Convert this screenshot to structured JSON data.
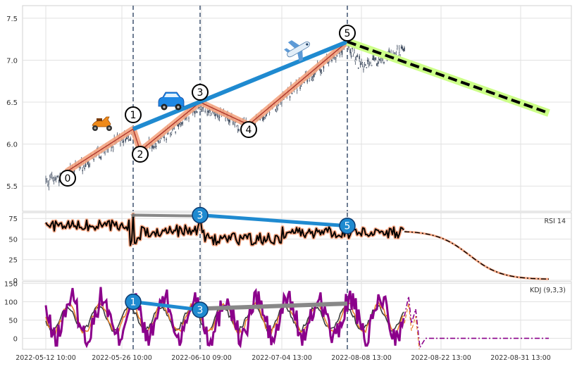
{
  "chart_data": [
    {
      "type": "candlestick",
      "title": "",
      "ylim": [
        5.2,
        7.65
      ],
      "y_ticks": [
        "5.5",
        "6.0",
        "6.5",
        "7.0",
        "7.5"
      ],
      "x_tick_labels": [
        "2022-05-12 10:00",
        "2022-05-26 10:00",
        "2022-06-10 09:00",
        "2022-07-04 13:00",
        "2022-08-08 13:00",
        "2022-08-22 13:00",
        "2022-08-31 13:00"
      ],
      "wave_points": [
        {
          "label": "0",
          "value": 5.68
        },
        {
          "label": "1",
          "value": 6.18
        },
        {
          "label": "2",
          "value": 5.92
        },
        {
          "label": "3",
          "value": 6.5
        },
        {
          "label": "4",
          "value": 6.23
        },
        {
          "label": "5",
          "value": 7.22
        }
      ],
      "trend_line": {
        "color": "#1f8ad0",
        "from": 6.18,
        "to": 7.22
      },
      "forecast": {
        "from": 7.22,
        "to": 6.37,
        "color": "#000000",
        "band_color": "#ccff88"
      },
      "wave_color": "#f4a582",
      "grid": true,
      "icons": [
        "scooter-icon",
        "car-icon",
        "airplane-icon"
      ]
    },
    {
      "type": "line",
      "name": "RSI 14",
      "ylim": [
        0,
        82
      ],
      "y_ticks": [
        "0",
        "25",
        "50",
        "75"
      ],
      "divergence_points": [
        {
          "label": "3",
          "value": 79
        },
        {
          "label": "5",
          "value": 66
        }
      ],
      "gray_line": [
        79,
        78
      ],
      "forecast_end": 1,
      "grid": true
    },
    {
      "type": "line",
      "name": "KDJ (9,3,3)",
      "ylim": [
        -30,
        155
      ],
      "y_ticks": [
        "0",
        "50",
        "100",
        "150"
      ],
      "series_colors": {
        "K": "#e8822a",
        "D": "#3a3a3a",
        "J": "#8b008b"
      },
      "divergence_points": [
        {
          "label": "1",
          "value": 100
        },
        {
          "label": "3",
          "value": 78
        }
      ],
      "gray_line": [
        81,
        95
      ],
      "forecast_end": 0,
      "grid": true
    }
  ]
}
